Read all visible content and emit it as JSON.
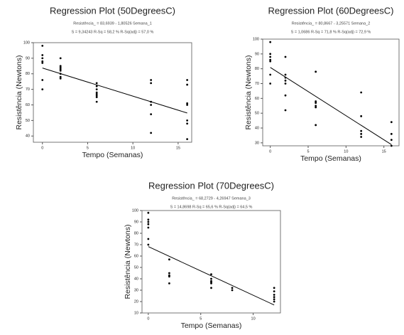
{
  "chart_data": [
    {
      "type": "scatter",
      "title": "Regression Plot (50DegreesC)",
      "subtitle": "Resistência_ = 83,6939 - 1,80526 Semana_1",
      "stats": "S = 9,34243     R-Sq = 58,2 %     R-Sq(adj) = 57,0 %",
      "xlabel": "Tempo (Semanas)",
      "ylabel": "Resistência (Newtons)",
      "x": [
        0,
        0,
        0,
        0,
        0,
        0,
        0,
        2,
        2,
        2,
        2,
        2,
        2,
        2,
        2,
        6,
        6,
        6,
        6,
        6,
        6,
        6,
        6,
        12,
        12,
        12,
        12,
        12,
        12,
        16,
        16,
        16,
        16,
        16,
        16,
        16
      ],
      "y": [
        98,
        92,
        90,
        88,
        87,
        76,
        70,
        90,
        85,
        84,
        83,
        82,
        80,
        78,
        77,
        74,
        72,
        70,
        68,
        67,
        66,
        65,
        62,
        76,
        74,
        62,
        60,
        54,
        42,
        76,
        73,
        61,
        60,
        50,
        48,
        38
      ],
      "fit_x": [
        0,
        16
      ],
      "fit_y": [
        83.7,
        54.8
      ],
      "xlim": [
        -1,
        16.5
      ],
      "ylim": [
        36,
        100
      ],
      "xticks": [
        0,
        5,
        10,
        15
      ],
      "yticks": [
        40,
        50,
        60,
        70,
        80,
        90,
        100
      ],
      "color": "#000000"
    },
    {
      "type": "scatter",
      "title": "Regression Plot (60DegreesC)",
      "subtitle": "Resistência_ = 80,8667 - 3,25571 Semana_2",
      "stats": "S = 1,0686     R-Sq = 71,8 %     R-Sq(adj) = 72,9 %",
      "xlabel": "Tempo (Semanas)",
      "ylabel": "Resistência (Newtons)",
      "x": [
        0,
        0,
        0,
        0,
        0,
        0,
        0,
        2,
        2,
        2,
        2,
        2,
        2,
        2,
        6,
        6,
        6,
        6,
        6,
        6,
        12,
        12,
        12,
        12,
        12,
        16,
        16,
        16,
        16
      ],
      "y": [
        98,
        90,
        88,
        86,
        85,
        76,
        70,
        88,
        76,
        74,
        72,
        70,
        62,
        52,
        78,
        58,
        57,
        55,
        54,
        42,
        64,
        48,
        38,
        36,
        34,
        44,
        36,
        32,
        28
      ],
      "fit_x": [
        0,
        16
      ],
      "fit_y": [
        80.9,
        28.8
      ],
      "xlim": [
        -1,
        17
      ],
      "ylim": [
        28,
        100
      ],
      "xticks": [
        0,
        5,
        10,
        15
      ],
      "yticks": [
        30,
        40,
        50,
        60,
        70,
        80,
        90,
        100
      ],
      "color": "#000000"
    },
    {
      "type": "scatter",
      "title": "Regression Plot (70DegreesC)",
      "subtitle": "Resistência_ = 68,2729 - 4,26947 Semana_3",
      "stats": "S = 14,8698     R-Sq = 65,6 %     R-Sq(adj) = 64,5 %",
      "xlabel": "Tempo (Semanas)",
      "ylabel": "Resistência (Newtons)",
      "x": [
        0,
        0,
        0,
        0,
        0,
        0,
        0,
        2,
        2,
        2,
        2,
        2,
        6,
        6,
        6,
        6,
        6,
        6,
        8,
        8,
        12,
        12,
        12,
        12,
        12,
        12
      ],
      "y": [
        98,
        92,
        90,
        88,
        85,
        75,
        70,
        57,
        45,
        43,
        42,
        36,
        44,
        40,
        38,
        37,
        36,
        32,
        32,
        30,
        32,
        29,
        26,
        24,
        22,
        20
      ],
      "fit_x": [
        0,
        12
      ],
      "fit_y": [
        68.3,
        17.0
      ],
      "xlim": [
        -0.6,
        12.6
      ],
      "ylim": [
        10,
        100
      ],
      "xticks": [
        0,
        5,
        10
      ],
      "yticks": [
        10,
        20,
        30,
        40,
        50,
        60,
        70,
        80,
        90,
        100
      ],
      "color": "#000000"
    }
  ]
}
